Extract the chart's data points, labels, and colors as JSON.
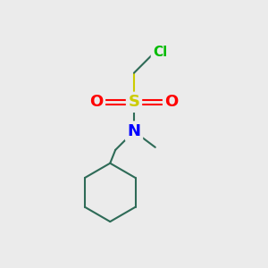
{
  "bg_color": "#ebebeb",
  "cl_color": "#00bb00",
  "s_color": "#cccc00",
  "o_color": "#ff0000",
  "n_color": "#0000ff",
  "bond_color": "#2e6b57",
  "cl_label": "Cl",
  "s_label": "S",
  "o_label": "O",
  "n_label": "N",
  "cl_fs": 11,
  "s_fs": 13,
  "o_fs": 13,
  "n_fs": 13,
  "bond_lw": 1.5,
  "cyclohex_color": "#2e6b57"
}
